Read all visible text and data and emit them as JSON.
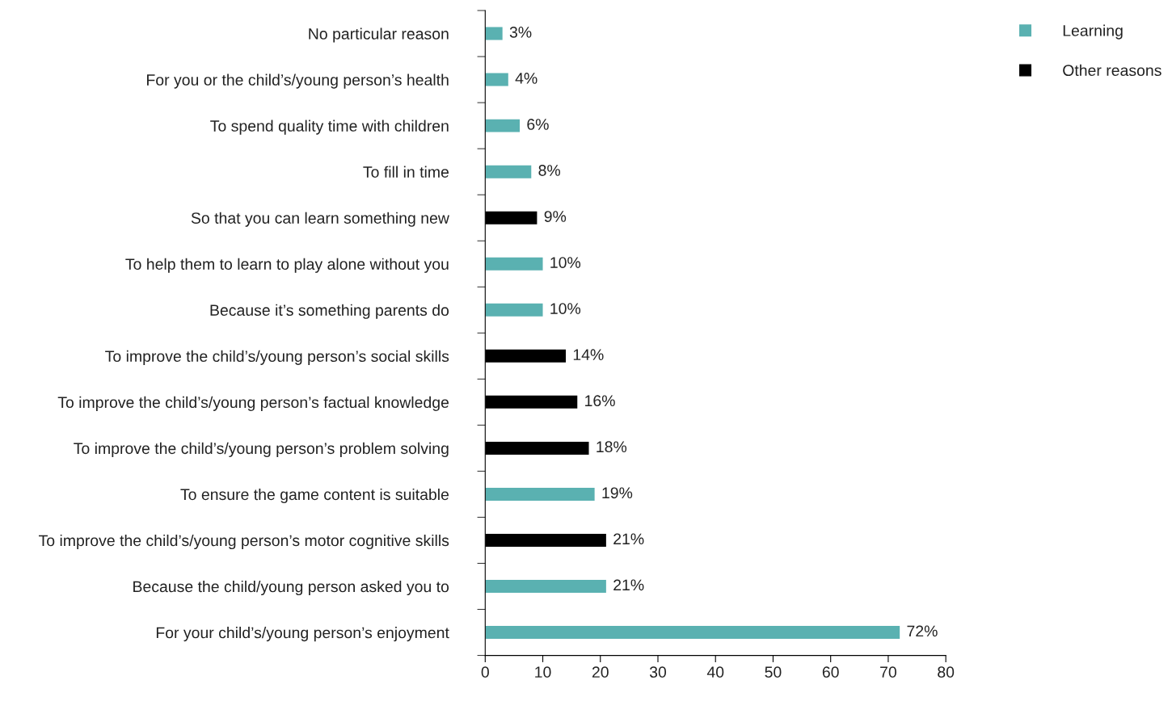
{
  "chart_data": {
    "type": "bar",
    "orientation": "horizontal",
    "categories": [
      "No particular reason",
      "For you or the child’s/young person’s health",
      "To spend quality time with children",
      "To fill in time",
      "So that you can learn something new",
      "To help them to learn to play alone without you",
      "Because it’s something parents do",
      "To improve the child’s/young person’s social skills",
      "To improve the child’s/young person’s factual knowledge",
      "To improve the child’s/young person’s problem solving",
      "To ensure the game content is suitable",
      "To improve the child’s/young person’s motor cognitive skills",
      "Because the child/young person asked you to",
      "For your child’s/young person’s enjoyment"
    ],
    "series": [
      {
        "name": "Learning",
        "color": "#5ab1b1",
        "values": [
          3,
          4,
          6,
          8,
          null,
          10,
          10,
          null,
          null,
          null,
          19,
          null,
          21,
          72
        ],
        "value_labels": [
          "3%",
          "4%",
          "6%",
          "8%",
          null,
          "10%",
          "10%",
          null,
          null,
          null,
          "19%",
          null,
          "21%",
          "72%"
        ]
      },
      {
        "name": "Other reasons",
        "color": "#000000",
        "values": [
          null,
          null,
          null,
          null,
          9,
          null,
          null,
          14,
          16,
          18,
          null,
          21,
          null,
          null
        ],
        "value_labels": [
          null,
          null,
          null,
          null,
          "9%",
          null,
          null,
          "14%",
          "16%",
          "18%",
          null,
          "21%",
          null,
          null
        ]
      }
    ],
    "xlim": [
      0,
      80
    ],
    "xticks": [
      0,
      10,
      20,
      30,
      40,
      50,
      60,
      70,
      80
    ],
    "grid": false,
    "legend": "top right"
  }
}
